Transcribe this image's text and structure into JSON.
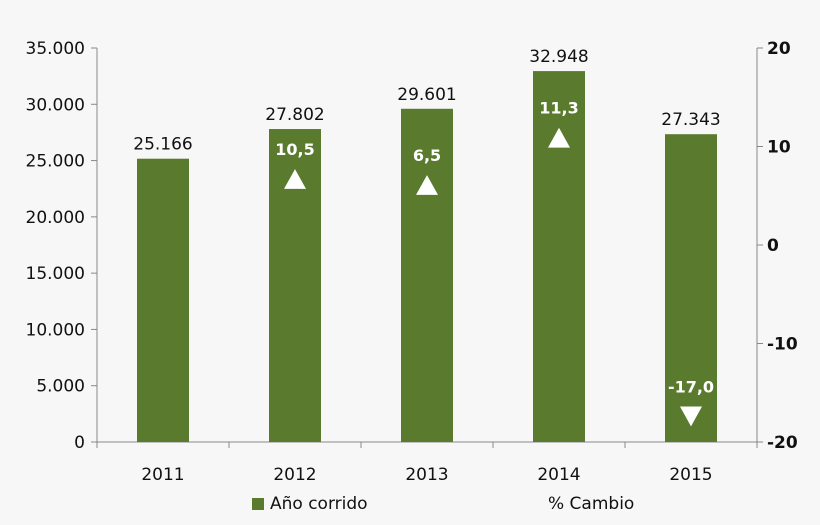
{
  "chart_data": {
    "type": "bar",
    "categories": [
      "2011",
      "2012",
      "2013",
      "2014",
      "2015"
    ],
    "series": [
      {
        "name": "Año corrido",
        "type": "bar",
        "axis": "left",
        "values": [
          25166,
          27802,
          29601,
          32948,
          27343
        ],
        "labels": [
          "25.166",
          "27.802",
          "29.601",
          "32.948",
          "27.343"
        ],
        "color": "#5a7a2e"
      },
      {
        "name": "% Cambio",
        "type": "marker",
        "axis": "right",
        "values": [
          null,
          10.5,
          6.5,
          11.3,
          -17.0
        ],
        "labels": [
          "",
          "10,5",
          "6,5",
          "11,3",
          "-17,0"
        ],
        "color": "#ffffff"
      }
    ],
    "y_left": {
      "lim": [
        0,
        35000
      ],
      "ticks": [
        0,
        5000,
        10000,
        15000,
        20000,
        25000,
        30000,
        35000
      ],
      "tick_labels": [
        "0",
        "5.000",
        "10.000",
        "15.000",
        "20.000",
        "25.000",
        "30.000",
        "35.000"
      ]
    },
    "y_right": {
      "lim": [
        -20,
        20
      ],
      "ticks": [
        -20,
        -10,
        0,
        10,
        20
      ],
      "tick_labels": [
        "-20",
        "-10",
        "0",
        "10",
        "20"
      ]
    },
    "grid": false,
    "legend": "bottom"
  }
}
